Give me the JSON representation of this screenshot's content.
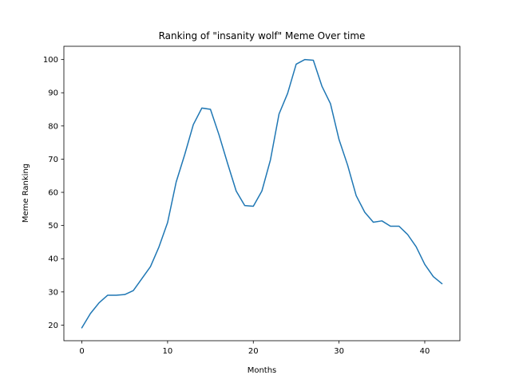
{
  "chart_data": {
    "type": "line",
    "title": "Ranking of \"insanity wolf\" Meme Over time",
    "xlabel": "Months",
    "ylabel": "Meme Ranking",
    "xlim": [
      -2.1,
      44.1
    ],
    "ylim": [
      15.3,
      104.0
    ],
    "xticks": [
      0,
      10,
      20,
      30,
      40
    ],
    "yticks": [
      20,
      30,
      40,
      50,
      60,
      70,
      80,
      90,
      100
    ],
    "grid": false,
    "legend": "none",
    "series": [
      {
        "color": "#1f77b4",
        "x": [
          0,
          1,
          2,
          3,
          4,
          5,
          6,
          7,
          8,
          9,
          10,
          11,
          12,
          13,
          14,
          15,
          16,
          17,
          18,
          19,
          20,
          21,
          22,
          23,
          24,
          25,
          26,
          27,
          28,
          29,
          30,
          31,
          32,
          33,
          34,
          35,
          36,
          37,
          38,
          39,
          40,
          41,
          42
        ],
        "values": [
          19.2,
          23.5,
          26.7,
          29.0,
          29.0,
          29.2,
          30.4,
          34.0,
          37.6,
          43.6,
          50.9,
          63.1,
          71.4,
          80.4,
          85.4,
          85.0,
          77.3,
          68.7,
          60.4,
          56.0,
          55.8,
          60.4,
          69.8,
          83.6,
          89.8,
          98.6,
          100.0,
          99.8,
          92.0,
          86.7,
          75.9,
          68.2,
          59.0,
          54.0,
          51.0,
          51.4,
          49.8,
          49.8,
          47.3,
          43.6,
          38.3,
          34.6,
          32.5
        ]
      }
    ]
  }
}
